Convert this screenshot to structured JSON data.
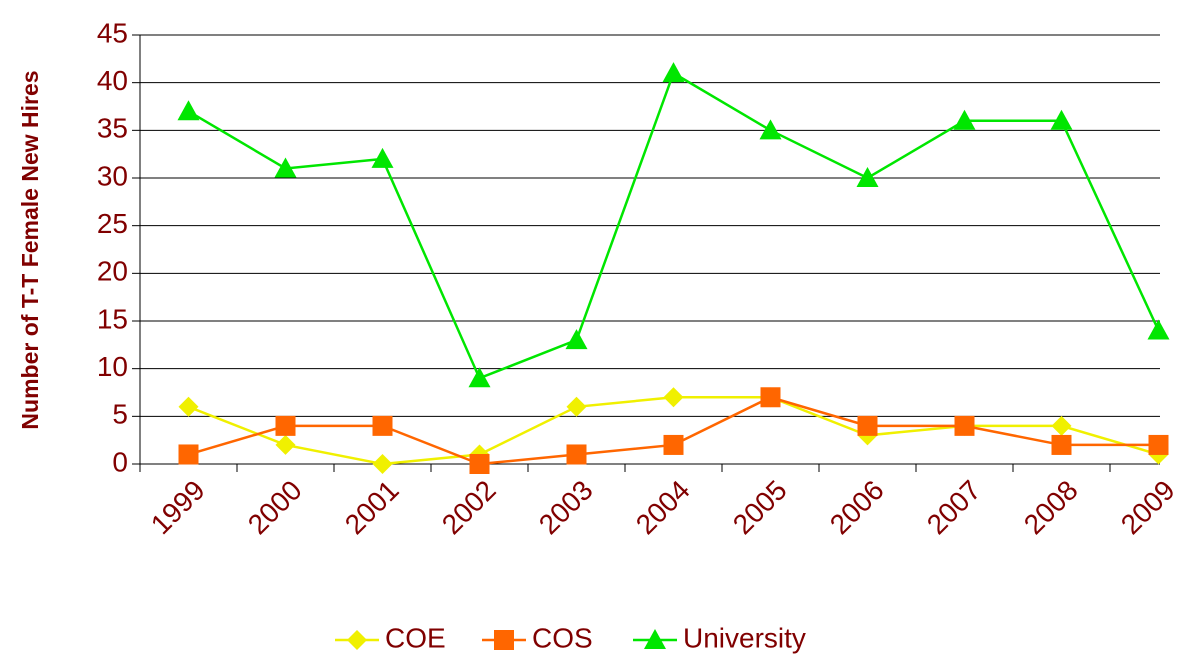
{
  "chart_data": {
    "type": "line",
    "ylabel": "Number of T-T Female New Hires",
    "categories": [
      "1999",
      "2000",
      "2001",
      "2002",
      "2003",
      "2004",
      "2005",
      "2006",
      "2007",
      "2008",
      "2009"
    ],
    "series": [
      {
        "name": "COE",
        "color": "#f0f000",
        "marker": "diamond",
        "values": [
          6,
          2,
          0,
          1,
          6,
          7,
          7,
          3,
          4,
          4,
          1
        ]
      },
      {
        "name": "COS",
        "color": "#ff6600",
        "marker": "square",
        "values": [
          1,
          4,
          4,
          0,
          1,
          2,
          7,
          4,
          4,
          2,
          2
        ]
      },
      {
        "name": "University",
        "color": "#00e600",
        "marker": "triangle",
        "values": [
          37,
          31,
          32,
          9,
          13,
          41,
          35,
          30,
          36,
          36,
          14
        ]
      }
    ],
    "ylim": [
      0,
      45
    ],
    "yticks": [
      0,
      5,
      10,
      15,
      20,
      25,
      30,
      35,
      40,
      45
    ],
    "grid": true,
    "legend": "bottom"
  }
}
